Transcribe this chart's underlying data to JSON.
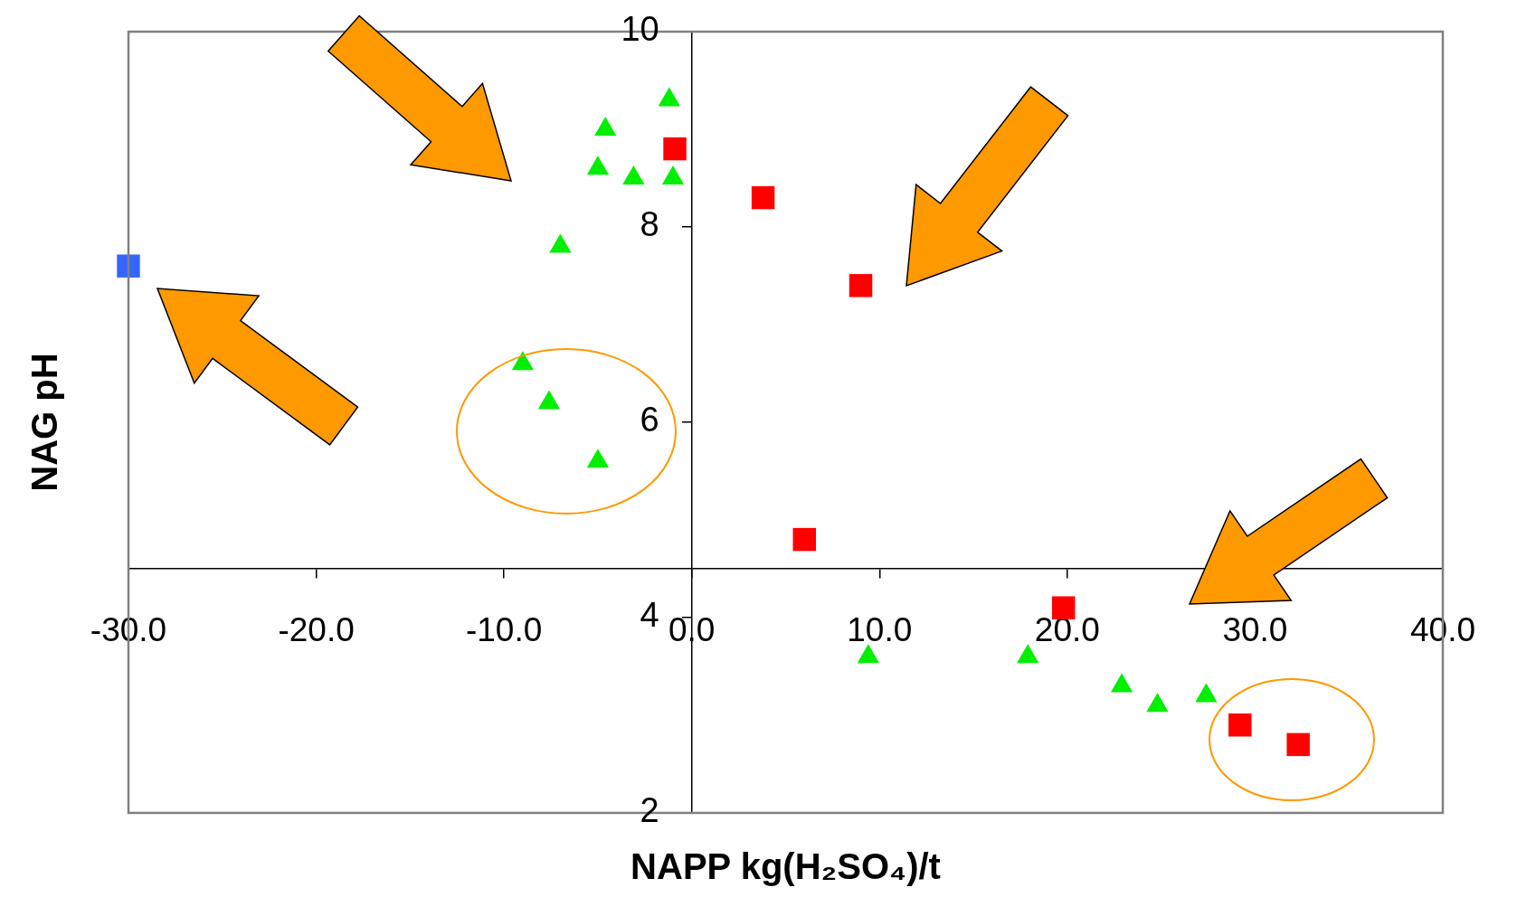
{
  "chart_data": {
    "type": "scatter",
    "xlabel": "NAPP kg(H₂SO₄)/t",
    "ylabel": "NAG pH",
    "xlim": [
      -30,
      40
    ],
    "xticks": [
      {
        "value": -30,
        "label": "-30.0"
      },
      {
        "value": -20,
        "label": "-20.0"
      },
      {
        "value": -10,
        "label": "-10.0"
      },
      {
        "value": 0,
        "label": "0.0"
      },
      {
        "value": 10,
        "label": "10.0"
      },
      {
        "value": 20,
        "label": "20.0"
      },
      {
        "value": 30,
        "label": "30.0"
      },
      {
        "value": 40,
        "label": "40.0"
      }
    ],
    "ylim": [
      2,
      10
    ],
    "yticks": [
      2,
      4,
      6,
      8,
      10
    ],
    "grid": false,
    "legend": false,
    "series": [
      {
        "color": "#3366ff",
        "marker": "square",
        "x": [
          -30
        ],
        "values": [
          7.6
        ]
      },
      {
        "color": "#ff0000",
        "marker": "square",
        "x": [
          -0.9,
          3.8,
          9.0,
          6.0,
          19.8,
          29.2,
          32.3
        ],
        "values": [
          8.8,
          8.3,
          7.4,
          4.8,
          4.1,
          2.9,
          2.7
        ]
      },
      {
        "color": "#00ee00",
        "marker": "triangle",
        "x": [
          -1.2,
          -4.6,
          -5.0,
          -3.1,
          -1.0,
          -7.0,
          -9.0,
          -7.6,
          -5.0,
          9.4,
          17.9,
          22.9,
          24.8,
          27.4
        ],
        "values": [
          9.3,
          9.0,
          8.6,
          8.5,
          8.5,
          7.8,
          6.6,
          6.2,
          5.6,
          3.6,
          3.6,
          3.3,
          3.1,
          3.2
        ]
      }
    ]
  }
}
